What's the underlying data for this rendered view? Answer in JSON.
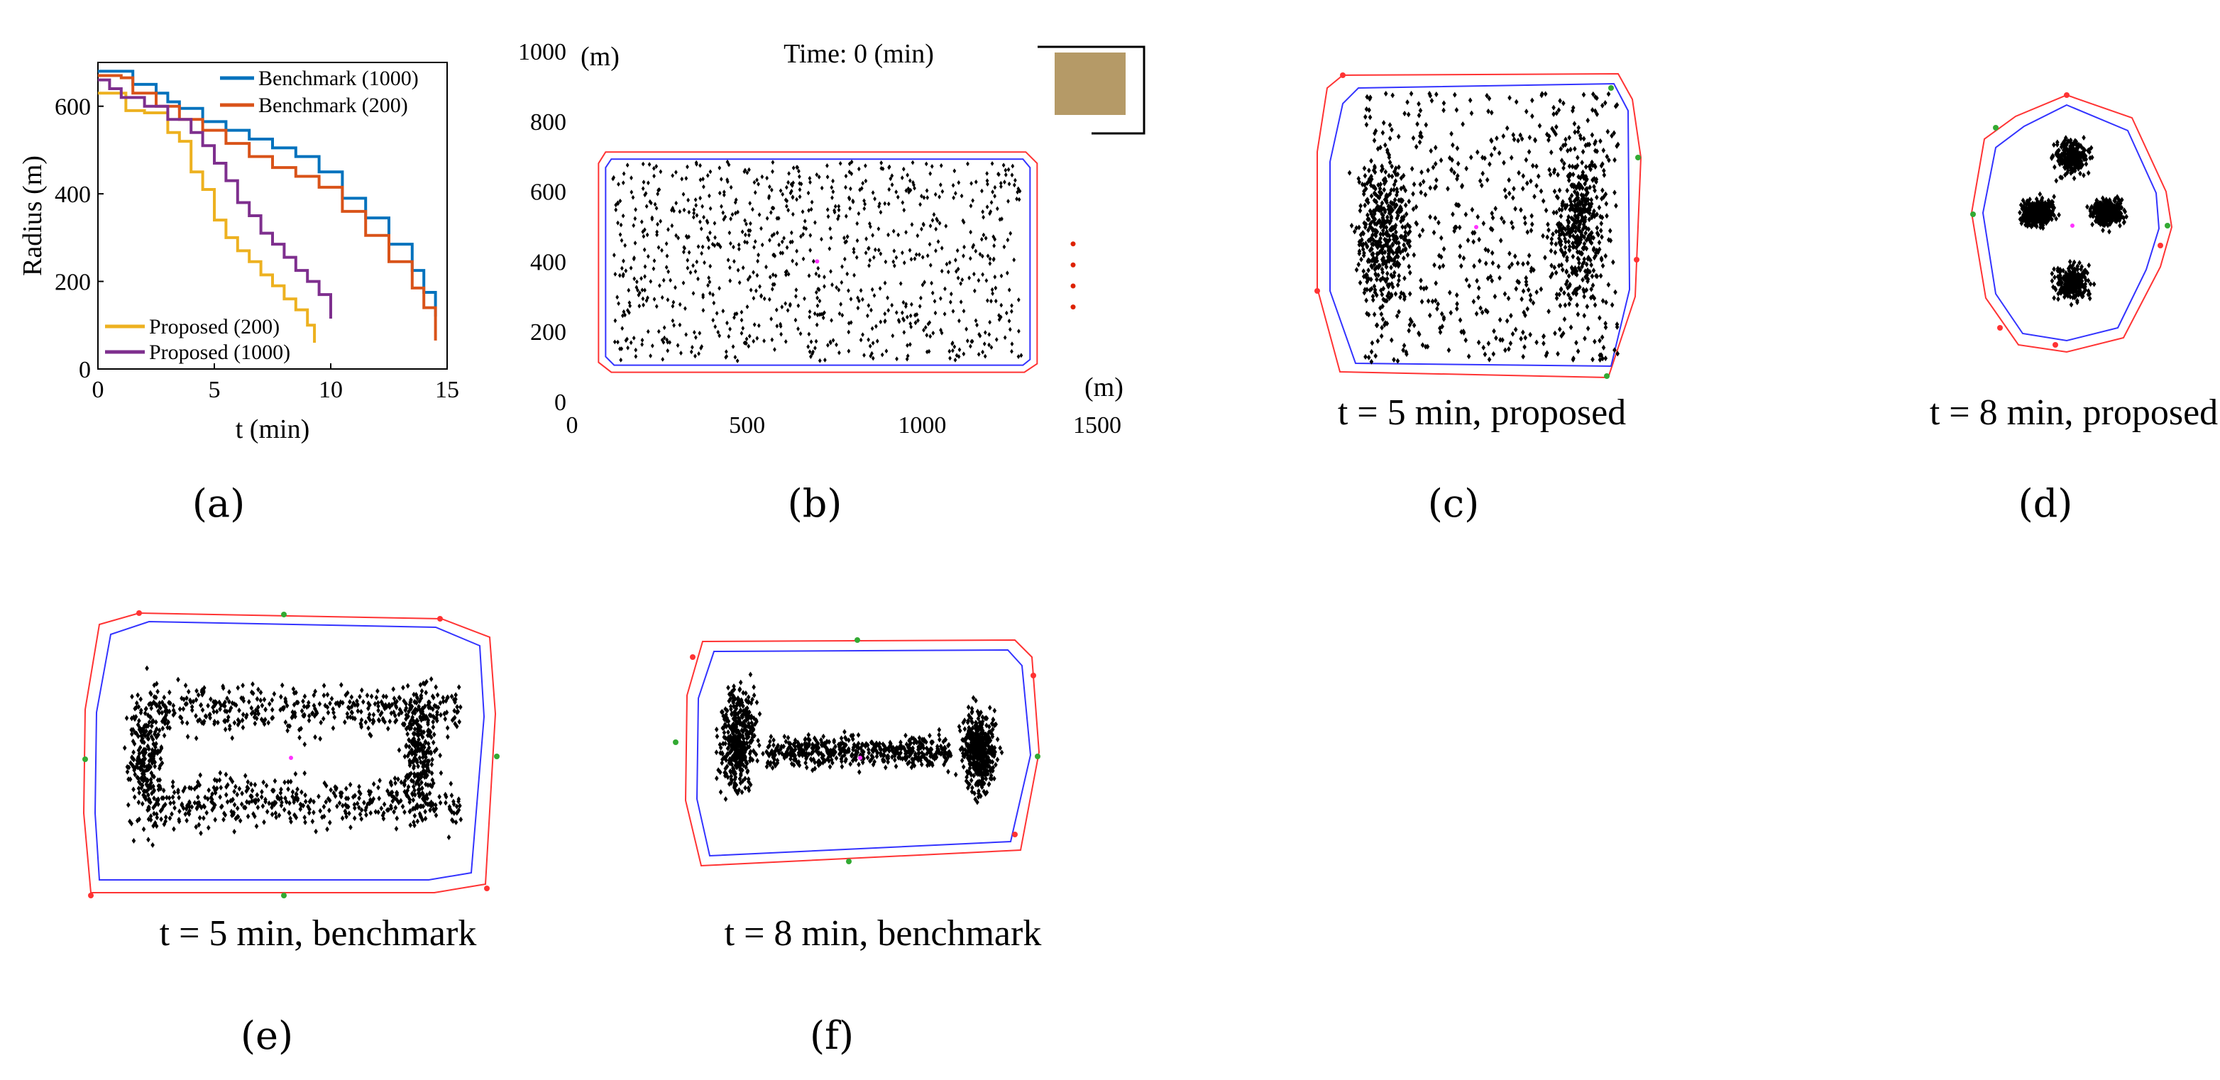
{
  "panels": {
    "a": "(a)",
    "b": "(b)",
    "c": "(c)",
    "d": "(d)",
    "e": "(e)",
    "f": "(f)"
  },
  "colors": {
    "benchmark_1000": "#0072BD",
    "benchmark_200": "#D95319",
    "proposed_200": "#EDB120",
    "proposed_1000": "#7E2F8E",
    "hull_inner": "#3333ff",
    "hull_outer": "#ff3333",
    "agent": "#000000",
    "center": "#ff33ff",
    "target_fill": "#B59A67"
  },
  "chart_data": [
    {
      "id": "a",
      "type": "line",
      "title": "",
      "xlabel": "t (min)",
      "ylabel": "Radius (m)",
      "xlim": [
        0,
        15
      ],
      "ylim": [
        0,
        700
      ],
      "xticks": [
        "0",
        "5",
        "10",
        "15"
      ],
      "yticks": [
        "0",
        "200",
        "400",
        "600"
      ],
      "legend_top": [
        "Benchmark (1000)",
        "Benchmark (200)"
      ],
      "legend_bottom": [
        "Proposed (200)",
        "Proposed (1000)"
      ],
      "series": [
        {
          "name": "Benchmark (1000)",
          "color": "#0072BD",
          "x": [
            0,
            1.2,
            1.5,
            2.5,
            3.0,
            3.5,
            4.5,
            5.5,
            6.5,
            7.5,
            8.5,
            9.5,
            10.5,
            11.5,
            12.5,
            13.5,
            14.0,
            14.5
          ],
          "y": [
            680,
            680,
            650,
            630,
            610,
            595,
            565,
            545,
            525,
            505,
            485,
            450,
            390,
            345,
            285,
            225,
            175,
            120
          ]
        },
        {
          "name": "Benchmark (200)",
          "color": "#D95319",
          "x": [
            0,
            1.0,
            1.5,
            2.5,
            3.5,
            4.5,
            5.5,
            6.5,
            7.5,
            8.5,
            9.5,
            10.5,
            11.5,
            12.5,
            13.5,
            14.0,
            14.5
          ],
          "y": [
            670,
            665,
            630,
            600,
            570,
            545,
            515,
            485,
            460,
            440,
            415,
            360,
            305,
            245,
            185,
            140,
            65
          ]
        },
        {
          "name": "Proposed (200)",
          "color": "#EDB120",
          "x": [
            0,
            0.8,
            1.2,
            2.0,
            3.0,
            3.5,
            4.0,
            4.5,
            5.0,
            5.5,
            6.0,
            6.5,
            7.0,
            7.5,
            8.0,
            8.5,
            9.0,
            9.3
          ],
          "y": [
            630,
            630,
            590,
            585,
            540,
            520,
            450,
            410,
            340,
            300,
            270,
            245,
            215,
            190,
            160,
            135,
            100,
            60
          ]
        },
        {
          "name": "Proposed (1000)",
          "color": "#7E2F8E",
          "x": [
            0,
            0.5,
            1.0,
            2.0,
            3.0,
            4.0,
            4.5,
            5.0,
            5.5,
            6.0,
            6.5,
            7.0,
            7.5,
            8.0,
            8.5,
            9.0,
            9.5,
            10.0
          ],
          "y": [
            660,
            640,
            620,
            600,
            570,
            540,
            510,
            470,
            430,
            380,
            350,
            310,
            285,
            255,
            225,
            200,
            170,
            115
          ]
        }
      ]
    },
    {
      "id": "b",
      "type": "scatter",
      "title": "Time: 0 (min)",
      "xlabel": "(m)",
      "ylabel": "(m)",
      "xlim": [
        0,
        1500
      ],
      "ylim": [
        0,
        1000
      ],
      "xticks": [
        "0",
        "500",
        "1000",
        "1500"
      ],
      "yticks": [
        "0",
        "200",
        "400",
        "600",
        "800",
        "1000"
      ],
      "n_agents": 1000,
      "region": {
        "xmin": 100,
        "xmax": 1300,
        "ymin": 100,
        "ymax": 700
      },
      "center": [
        700,
        400
      ],
      "red_markers": [
        [
          1420,
          450
        ],
        [
          1420,
          390
        ],
        [
          1420,
          330
        ],
        [
          1420,
          270
        ]
      ]
    },
    {
      "id": "c",
      "type": "scatter",
      "caption": "t = 5 min, proposed",
      "n_agents": 1400
    },
    {
      "id": "d",
      "type": "scatter",
      "caption": "t = 8 min, proposed",
      "n_agents": 1400
    },
    {
      "id": "e",
      "type": "scatter",
      "caption": "t = 5 min, benchmark",
      "n_agents": 1400
    },
    {
      "id": "f",
      "type": "scatter",
      "caption": "t = 8 min, benchmark",
      "n_agents": 1400
    }
  ]
}
